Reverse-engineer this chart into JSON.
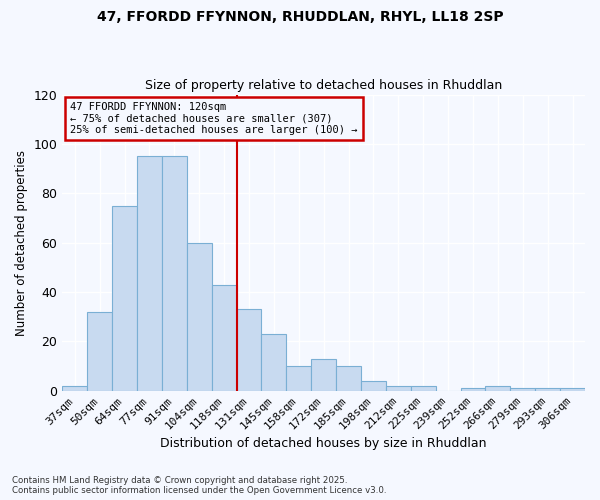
{
  "title": "47, FFORDD FFYNNON, RHUDDLAN, RHYL, LL18 2SP",
  "subtitle": "Size of property relative to detached houses in Rhuddlan",
  "xlabel": "Distribution of detached houses by size in Rhuddlan",
  "ylabel": "Number of detached properties",
  "bar_color": "#c8daf0",
  "bar_edgecolor": "#7aafd4",
  "background_color": "#f5f8ff",
  "grid_color": "#ffffff",
  "categories": [
    "37sqm",
    "50sqm",
    "64sqm",
    "77sqm",
    "91sqm",
    "104sqm",
    "118sqm",
    "131sqm",
    "145sqm",
    "158sqm",
    "172sqm",
    "185sqm",
    "198sqm",
    "212sqm",
    "225sqm",
    "239sqm",
    "252sqm",
    "266sqm",
    "279sqm",
    "293sqm",
    "306sqm"
  ],
  "values": [
    2,
    32,
    75,
    95,
    95,
    60,
    43,
    33,
    23,
    10,
    13,
    10,
    4,
    2,
    2,
    0,
    1,
    2,
    1,
    1,
    1
  ],
  "vline_pos": 6.5,
  "vline_color": "#cc0000",
  "annotation_title": "47 FFORDD FFYNNON: 120sqm",
  "annotation_line1": "← 75% of detached houses are smaller (307)",
  "annotation_line2": "25% of semi-detached houses are larger (100) →",
  "annotation_box_color": "#cc0000",
  "ylim": [
    0,
    120
  ],
  "yticks": [
    0,
    20,
    40,
    60,
    80,
    100,
    120
  ],
  "footer_line1": "Contains HM Land Registry data © Crown copyright and database right 2025.",
  "footer_line2": "Contains public sector information licensed under the Open Government Licence v3.0."
}
